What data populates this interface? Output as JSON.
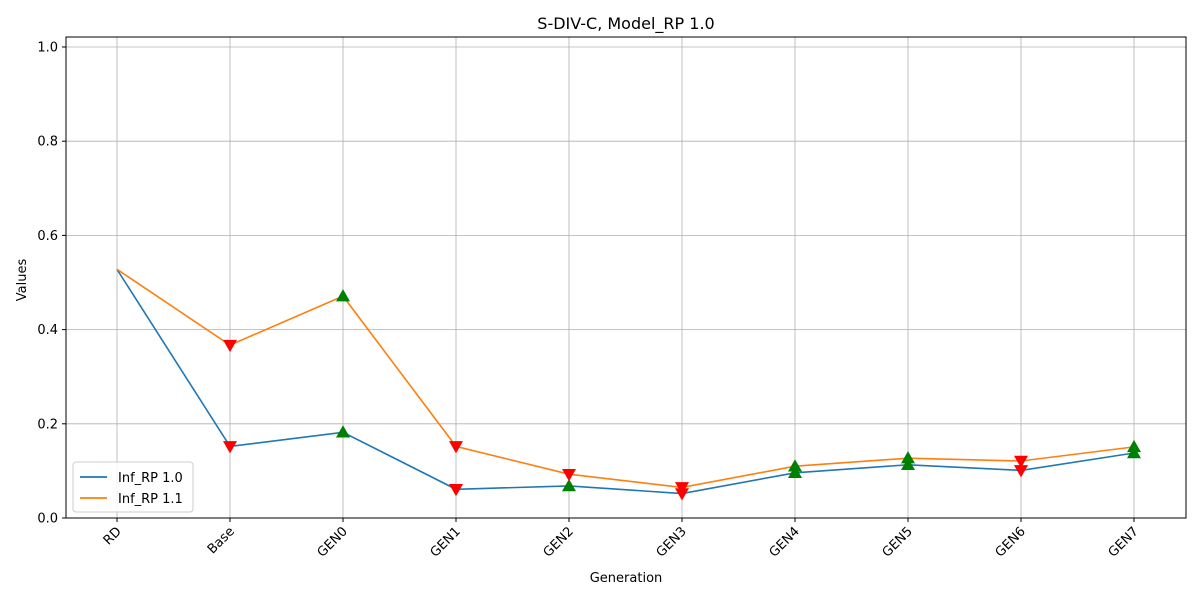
{
  "chart_data": {
    "type": "line",
    "title": "S-DIV-C, Model_RP 1.0",
    "xlabel": "Generation",
    "ylabel": "Values",
    "categories": [
      "RD",
      "Base",
      "GEN0",
      "GEN1",
      "GEN2",
      "GEN3",
      "GEN4",
      "GEN5",
      "GEN6",
      "GEN7"
    ],
    "ylim": [
      0,
      1.0
    ],
    "yticks": [
      "0.0",
      "0.2",
      "0.4",
      "0.6",
      "0.8",
      "1.0"
    ],
    "grid": true,
    "legend_position": "lower-left",
    "series": [
      {
        "name": "Inf_RP 1.0",
        "color": "#1f77b4",
        "values": [
          0.528,
          0.152,
          0.182,
          0.061,
          0.068,
          0.052,
          0.096,
          0.113,
          0.101,
          0.138
        ],
        "markers": [
          "none",
          "down",
          "up",
          "down",
          "up",
          "down",
          "up",
          "up",
          "down",
          "up"
        ]
      },
      {
        "name": "Inf_RP 1.1",
        "color": "#ff7f0e",
        "values": [
          0.528,
          0.367,
          0.471,
          0.152,
          0.093,
          0.065,
          0.11,
          0.127,
          0.121,
          0.151
        ],
        "markers": [
          "none",
          "down",
          "up",
          "down",
          "down",
          "down",
          "up",
          "up",
          "down",
          "up"
        ]
      }
    ],
    "marker_colors": {
      "up": "#008000",
      "down": "#ff0000"
    }
  }
}
